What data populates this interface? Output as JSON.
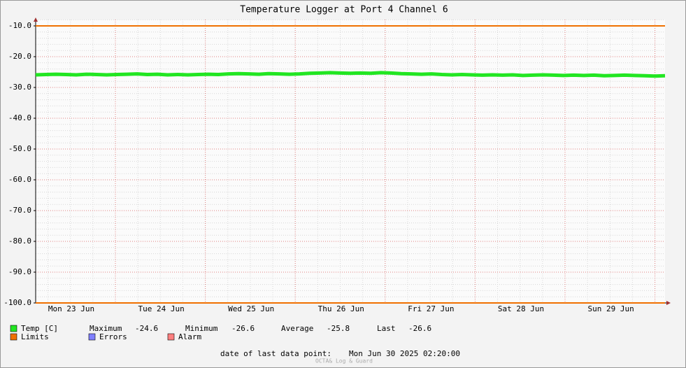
{
  "chart_data": {
    "type": "line",
    "title": "Temperature Logger at Port 4 Channel 6",
    "x_labels": [
      "Mon 23 Jun",
      "Tue 24 Jun",
      "Wed 25 Jun",
      "Thu 26 Jun",
      "Fri 27 Jun",
      "Sat 28 Jun",
      "Sun 29 Jun"
    ],
    "ylim": [
      -100,
      -10
    ],
    "yticks": [
      {
        "value": -10,
        "label": "-10.0"
      },
      {
        "value": -20,
        "label": "-20.0"
      },
      {
        "value": -30,
        "label": "-30.0"
      },
      {
        "value": -40,
        "label": "-40.0"
      },
      {
        "value": -50,
        "label": "-50.0"
      },
      {
        "value": -60,
        "label": "-60.0"
      },
      {
        "value": -70,
        "label": "-70.0"
      },
      {
        "value": -80,
        "label": "-80.0"
      },
      {
        "value": -90,
        "label": "-90.0"
      },
      {
        "value": -100,
        "label": "-100.0"
      }
    ],
    "grid": true,
    "series": [
      {
        "name": "Temp [C]",
        "color": "#22e622",
        "values": [
          -25.9,
          -25.8,
          -25.7,
          -25.8,
          -25.9,
          -25.7,
          -25.8,
          -25.9,
          -25.8,
          -25.7,
          -25.6,
          -25.8,
          -25.7,
          -25.9,
          -25.8,
          -25.9,
          -25.8,
          -25.7,
          -25.8,
          -25.6,
          -25.5,
          -25.6,
          -25.7,
          -25.5,
          -25.6,
          -25.7,
          -25.6,
          -25.4,
          -25.3,
          -25.2,
          -25.3,
          -25.4,
          -25.3,
          -25.4,
          -25.2,
          -25.3,
          -25.5,
          -25.6,
          -25.7,
          -25.6,
          -25.8,
          -25.9,
          -25.8,
          -25.9,
          -26.0,
          -25.9,
          -26.0,
          -25.9,
          -26.1,
          -26.0,
          -25.9,
          -26.0,
          -26.1,
          -26.0,
          -26.1,
          -26.0,
          -26.2,
          -26.1,
          -26.0,
          -26.1,
          -26.2,
          -26.3,
          -26.2
        ]
      }
    ],
    "limits": {
      "name": "Limits",
      "color": "#f07000",
      "values": [
        -10,
        -100
      ]
    },
    "legend": [
      {
        "name": "Errors",
        "color": "#7f7fff"
      },
      {
        "name": "Alarm",
        "color": "#ff7f7f"
      }
    ],
    "stats": [
      {
        "label": "Maximum",
        "value": -24.6
      },
      {
        "label": "Minimum",
        "value": -26.6
      },
      {
        "label": "Average",
        "value": -25.8
      },
      {
        "label": "Last",
        "value": -26.6
      }
    ],
    "footer": {
      "label": "date of last data point:",
      "value": "Mon Jun 30 2025 02:20:00"
    },
    "watermark": "OCTA& Log & Guard"
  }
}
